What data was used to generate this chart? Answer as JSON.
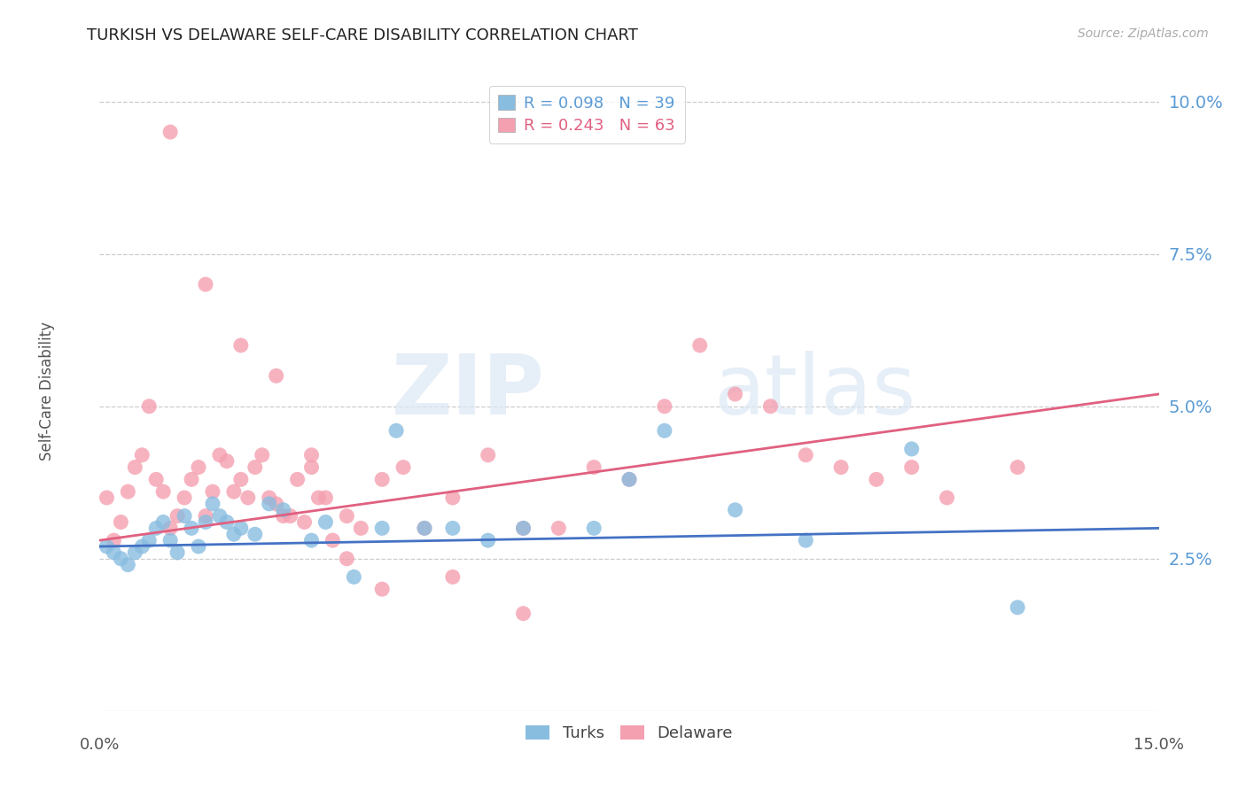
{
  "title": "TURKISH VS DELAWARE SELF-CARE DISABILITY CORRELATION CHART",
  "source": "Source: ZipAtlas.com",
  "ylabel": "Self-Care Disability",
  "xmin": 0.0,
  "xmax": 0.15,
  "ymin": 0.0,
  "ymax": 0.105,
  "yticks": [
    0.025,
    0.05,
    0.075,
    0.1
  ],
  "ytick_labels": [
    "2.5%",
    "5.0%",
    "7.5%",
    "10.0%"
  ],
  "background_color": "#ffffff",
  "turks_color": "#89bde0",
  "delaware_color": "#f4a0b0",
  "turks_line_color": "#4472c4",
  "delaware_line_color": "#e06080",
  "legend_turks_R": "R = 0.098",
  "legend_turks_N": "N = 39",
  "legend_delaware_R": "R = 0.243",
  "legend_delaware_N": "N = 63",
  "turks_x": [
    0.001,
    0.002,
    0.003,
    0.004,
    0.005,
    0.006,
    0.007,
    0.008,
    0.009,
    0.01,
    0.011,
    0.012,
    0.013,
    0.014,
    0.015,
    0.016,
    0.017,
    0.018,
    0.019,
    0.02,
    0.022,
    0.024,
    0.026,
    0.03,
    0.032,
    0.036,
    0.04,
    0.042,
    0.046,
    0.05,
    0.055,
    0.07,
    0.08,
    0.09,
    0.1,
    0.115,
    0.13,
    0.075,
    0.06
  ],
  "turks_y": [
    0.027,
    0.026,
    0.025,
    0.024,
    0.026,
    0.027,
    0.028,
    0.03,
    0.031,
    0.028,
    0.026,
    0.032,
    0.03,
    0.027,
    0.031,
    0.034,
    0.032,
    0.031,
    0.029,
    0.03,
    0.029,
    0.034,
    0.033,
    0.028,
    0.031,
    0.022,
    0.03,
    0.046,
    0.03,
    0.03,
    0.028,
    0.03,
    0.046,
    0.033,
    0.028,
    0.043,
    0.017,
    0.038,
    0.03
  ],
  "delaware_x": [
    0.001,
    0.002,
    0.003,
    0.004,
    0.005,
    0.006,
    0.007,
    0.008,
    0.009,
    0.01,
    0.011,
    0.012,
    0.013,
    0.014,
    0.015,
    0.016,
    0.017,
    0.018,
    0.019,
    0.02,
    0.021,
    0.022,
    0.023,
    0.024,
    0.025,
    0.026,
    0.027,
    0.028,
    0.029,
    0.03,
    0.031,
    0.032,
    0.033,
    0.035,
    0.037,
    0.04,
    0.043,
    0.046,
    0.05,
    0.055,
    0.06,
    0.065,
    0.07,
    0.075,
    0.08,
    0.085,
    0.09,
    0.095,
    0.1,
    0.105,
    0.11,
    0.115,
    0.12,
    0.13,
    0.01,
    0.015,
    0.02,
    0.025,
    0.03,
    0.035,
    0.04,
    0.05,
    0.06
  ],
  "delaware_y": [
    0.035,
    0.028,
    0.031,
    0.036,
    0.04,
    0.042,
    0.05,
    0.038,
    0.036,
    0.03,
    0.032,
    0.035,
    0.038,
    0.04,
    0.032,
    0.036,
    0.042,
    0.041,
    0.036,
    0.038,
    0.035,
    0.04,
    0.042,
    0.035,
    0.034,
    0.032,
    0.032,
    0.038,
    0.031,
    0.04,
    0.035,
    0.035,
    0.028,
    0.032,
    0.03,
    0.038,
    0.04,
    0.03,
    0.035,
    0.042,
    0.03,
    0.03,
    0.04,
    0.038,
    0.05,
    0.06,
    0.052,
    0.05,
    0.042,
    0.04,
    0.038,
    0.04,
    0.035,
    0.04,
    0.095,
    0.07,
    0.06,
    0.055,
    0.042,
    0.025,
    0.02,
    0.022,
    0.016
  ],
  "turks_trend_x": [
    0.0,
    0.15
  ],
  "turks_trend_y": [
    0.027,
    0.03
  ],
  "delaware_trend_x": [
    0.0,
    0.15
  ],
  "delaware_trend_y": [
    0.028,
    0.052
  ],
  "watermark_zip": "ZIP",
  "watermark_atlas": "atlas",
  "axis_label_color": "#5b9bd5",
  "grid_color": "#cccccc"
}
